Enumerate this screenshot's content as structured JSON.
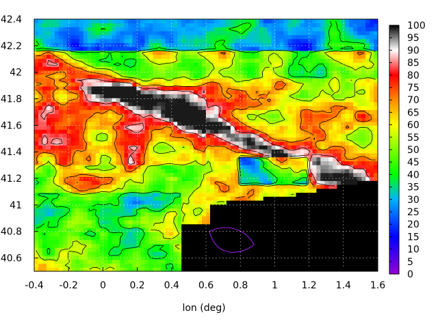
{
  "chart_data": {
    "type": "heatmap",
    "title": "",
    "xlabel": "lon (deg)",
    "ylabel": "",
    "xlim": [
      -0.4,
      1.6
    ],
    "ylim": [
      40.5,
      42.4
    ],
    "x_ticks": [
      "-0.4",
      "-0.2",
      "0",
      "0.2",
      "0.4",
      "0.6",
      "0.8",
      "1",
      "1.2",
      "1.4",
      "1.6"
    ],
    "y_ticks": [
      "40.6",
      "40.8",
      "41",
      "41.2",
      "41.4",
      "41.6",
      "41.8",
      "42",
      "42.2",
      "42.4"
    ],
    "grid": true,
    "colorbar": {
      "range": [
        0,
        100
      ],
      "ticks": [
        "0",
        "5",
        "10",
        "15",
        "20",
        "25",
        "30",
        "35",
        "40",
        "45",
        "50",
        "55",
        "60",
        "65",
        "70",
        "75",
        "80",
        "85",
        "90",
        "95",
        "100"
      ],
      "colors": [
        "#9400d3",
        "#0000ff",
        "#00b3ff",
        "#00ff00",
        "#ffff00",
        "#ff8c00",
        "#ff0000",
        "#ffffff",
        "#000000"
      ],
      "color_stops": [
        0,
        15,
        30,
        40,
        60,
        70,
        80,
        90,
        100
      ]
    },
    "land_field_description_values": {
      "north_band_lat": [
        42.2,
        42.4
      ],
      "north_band_value_range": [
        20,
        50
      ],
      "coastal_plain_value_range": [
        70,
        85
      ],
      "ridge_value_range": [
        85,
        95
      ],
      "southwest_value_range": [
        40,
        60
      ],
      "sea_value": 100
    }
  }
}
